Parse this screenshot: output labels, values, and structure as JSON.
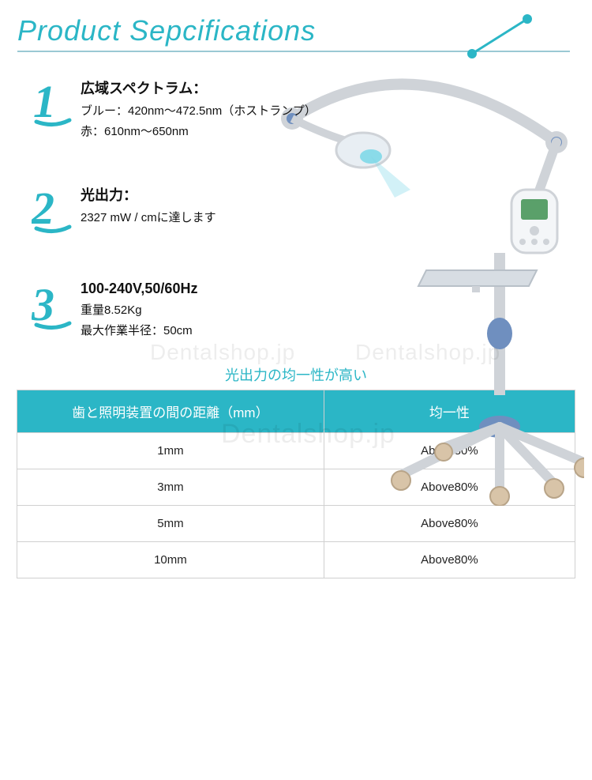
{
  "colors": {
    "accent": "#2bb6c6",
    "accent_dark": "#1d8fa0",
    "title_color": "#2bb6c6",
    "rule_color": "#9bc9d4",
    "table_header_bg": "#2bb6c6",
    "table_border": "#d0d0d0",
    "text": "#111111",
    "watermark": "rgba(0,0,0,0.07)",
    "device_silver": "#cfd3d8",
    "device_blue": "#6f8fbf",
    "device_light": "#7fd8e8"
  },
  "header": {
    "title": "Product Sepcifications"
  },
  "watermark_text": "Dentalshop.jp",
  "specs": [
    {
      "num": "1",
      "heading": "広域スペクトラム：",
      "lines": [
        "ブルー：420nm～472.5nm（ホストランプ）",
        "赤：610nm～650nm"
      ]
    },
    {
      "num": "2",
      "heading": "光出力：",
      "lines": [
        "2327 mW / cmに達します"
      ]
    },
    {
      "num": "3",
      "heading": "100-240V,50/60Hz",
      "lines": [
        "重量8.52Kg",
        "最大作業半径：50cm"
      ]
    }
  ],
  "table": {
    "caption": "光出力の均一性が高い",
    "columns": [
      "歯と照明装置の間の距離（mm）",
      "均一性"
    ],
    "col_widths": [
      "55%",
      "45%"
    ],
    "rows": [
      [
        "1mm",
        "Above80%"
      ],
      [
        "3mm",
        "Above80%"
      ],
      [
        "5mm",
        "Above80%"
      ],
      [
        "10mm",
        "Above80%"
      ]
    ]
  }
}
